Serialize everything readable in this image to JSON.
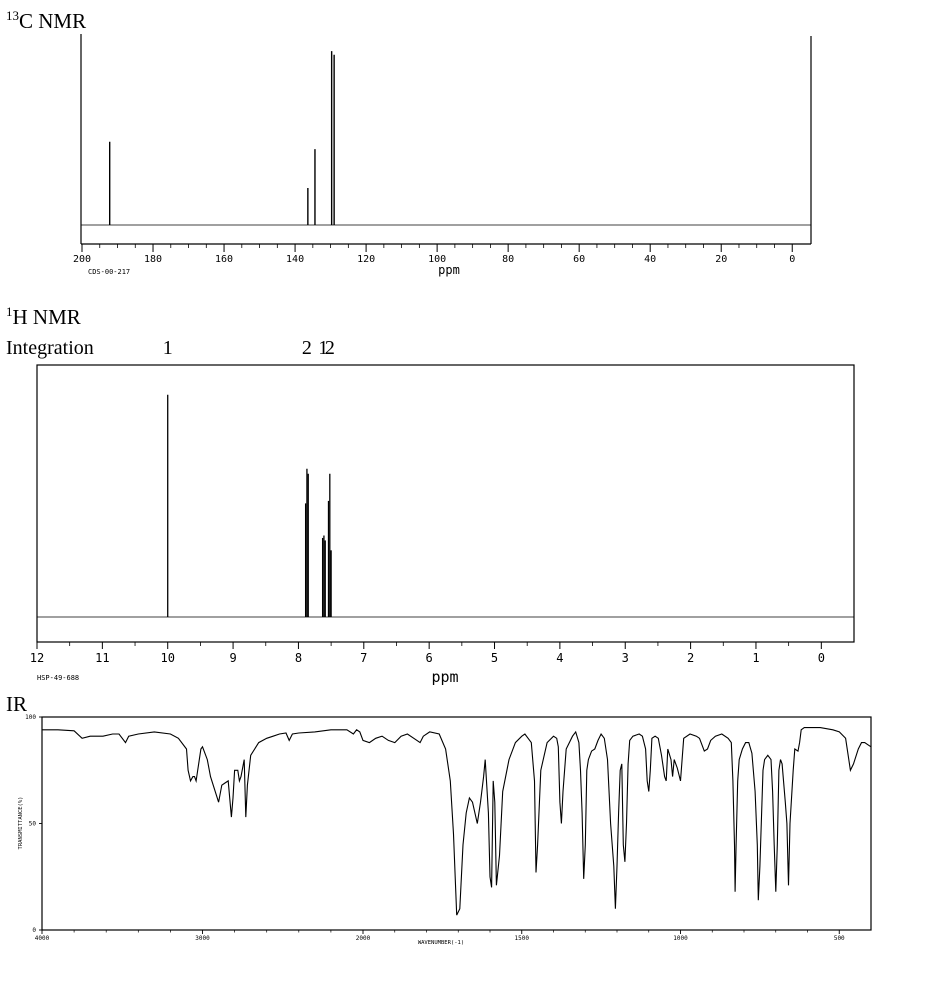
{
  "colors": {
    "line": "#000000",
    "background": "#ffffff"
  },
  "chart_data": [
    {
      "type": "line",
      "title": "13C NMR",
      "title_sup": "13",
      "title_main": "C NMR",
      "xlabel": "ppm",
      "xlim": [
        200,
        -5
      ],
      "ylim": [
        0,
        1
      ],
      "x_ticks": [
        200,
        180,
        160,
        140,
        120,
        100,
        80,
        60,
        40,
        20,
        0
      ],
      "x_tick_labels": [
        "200",
        "180",
        "160",
        "140",
        "120",
        "100",
        "80",
        "60",
        "40",
        "20",
        "0"
      ],
      "code": "CDS-00-217",
      "grid": false,
      "peaks": [
        {
          "x": 192.2,
          "y": 0.45
        },
        {
          "x": 136.4,
          "y": 0.2
        },
        {
          "x": 134.4,
          "y": 0.41
        },
        {
          "x": 129.7,
          "y": 0.94
        },
        {
          "x": 129.0,
          "y": 0.92
        }
      ]
    },
    {
      "type": "line",
      "title": "1H NMR",
      "title_sup": "1",
      "title_main": "H NMR",
      "integration_label": "Integration",
      "integration": [
        {
          "x": 10.0,
          "label": "1"
        },
        {
          "x": 7.87,
          "label": "2"
        },
        {
          "x": 7.62,
          "label": "1"
        },
        {
          "x": 7.52,
          "label": "2"
        }
      ],
      "xlabel": "ppm",
      "xlim": [
        12,
        -0.5
      ],
      "ylim": [
        0,
        1
      ],
      "x_ticks": [
        12,
        11,
        10,
        9,
        8,
        7,
        6,
        5,
        4,
        3,
        2,
        1,
        0
      ],
      "x_tick_labels": [
        "12",
        "11",
        "10",
        "9",
        "8",
        "7",
        "6",
        "5",
        "4",
        "3",
        "2",
        "1",
        "0"
      ],
      "code": "HSP-49-688",
      "grid": false,
      "peaks": [
        {
          "x": 10.0,
          "y": 0.9
        },
        {
          "x": 7.89,
          "y": 0.46
        },
        {
          "x": 7.87,
          "y": 0.6
        },
        {
          "x": 7.85,
          "y": 0.58
        },
        {
          "x": 7.63,
          "y": 0.32
        },
        {
          "x": 7.61,
          "y": 0.33
        },
        {
          "x": 7.59,
          "y": 0.31
        },
        {
          "x": 7.54,
          "y": 0.47
        },
        {
          "x": 7.52,
          "y": 0.58
        },
        {
          "x": 7.5,
          "y": 0.27
        }
      ]
    },
    {
      "type": "line",
      "title": "IR",
      "xlabel": "WAVENUMBER(-1)",
      "ylabel": "TRANSMITTANCE(%)",
      "xlim": [
        4000,
        400
      ],
      "ylim": [
        0,
        100
      ],
      "x_ticks": [
        4000,
        3000,
        2000,
        1500,
        1000,
        500
      ],
      "x_tick_labels": [
        "4000",
        "3000",
        "2000",
        "1500",
        "1000",
        "500"
      ],
      "y_ticks": [
        0,
        50,
        100
      ],
      "y_tick_labels": [
        "0",
        "50",
        "100"
      ],
      "grid": false,
      "points": [
        [
          4000,
          94
        ],
        [
          3900,
          94
        ],
        [
          3800,
          93.5
        ],
        [
          3750,
          90
        ],
        [
          3700,
          91
        ],
        [
          3620,
          91
        ],
        [
          3560,
          92
        ],
        [
          3520,
          92
        ],
        [
          3480,
          88
        ],
        [
          3460,
          91
        ],
        [
          3400,
          92
        ],
        [
          3300,
          93
        ],
        [
          3200,
          92
        ],
        [
          3150,
          90
        ],
        [
          3100,
          85
        ],
        [
          3090,
          75
        ],
        [
          3075,
          70
        ],
        [
          3060,
          72
        ],
        [
          3050,
          72
        ],
        [
          3040,
          70
        ],
        [
          3030,
          75
        ],
        [
          3010,
          85
        ],
        [
          3000,
          86
        ],
        [
          2990,
          84
        ],
        [
          2970,
          80
        ],
        [
          2950,
          72
        ],
        [
          2900,
          60
        ],
        [
          2880,
          68
        ],
        [
          2860,
          69
        ],
        [
          2840,
          70
        ],
        [
          2820,
          53
        ],
        [
          2810,
          62
        ],
        [
          2800,
          75
        ],
        [
          2780,
          75
        ],
        [
          2770,
          70
        ],
        [
          2760,
          72
        ],
        [
          2740,
          80
        ],
        [
          2730,
          53
        ],
        [
          2720,
          68
        ],
        [
          2700,
          82
        ],
        [
          2650,
          88
        ],
        [
          2600,
          90
        ],
        [
          2560,
          91
        ],
        [
          2520,
          92
        ],
        [
          2480,
          92.5
        ],
        [
          2460,
          89
        ],
        [
          2440,
          92
        ],
        [
          2400,
          92.5
        ],
        [
          2300,
          93
        ],
        [
          2200,
          94
        ],
        [
          2100,
          94
        ],
        [
          2060,
          92
        ],
        [
          2040,
          94
        ],
        [
          2020,
          93
        ],
        [
          2000,
          89
        ],
        [
          1980,
          88
        ],
        [
          1960,
          90
        ],
        [
          1940,
          91
        ],
        [
          1920,
          89
        ],
        [
          1900,
          88
        ],
        [
          1880,
          91
        ],
        [
          1860,
          92
        ],
        [
          1840,
          90
        ],
        [
          1820,
          88
        ],
        [
          1810,
          91
        ],
        [
          1790,
          93
        ],
        [
          1760,
          92
        ],
        [
          1740,
          85
        ],
        [
          1725,
          70
        ],
        [
          1715,
          45
        ],
        [
          1705,
          7
        ],
        [
          1695,
          10
        ],
        [
          1685,
          40
        ],
        [
          1675,
          55
        ],
        [
          1665,
          62
        ],
        [
          1655,
          60
        ],
        [
          1640,
          50
        ],
        [
          1630,
          60
        ],
        [
          1620,
          72
        ],
        [
          1615,
          80
        ],
        [
          1605,
          55
        ],
        [
          1600,
          25
        ],
        [
          1595,
          20
        ],
        [
          1590,
          70
        ],
        [
          1585,
          60
        ],
        [
          1580,
          21
        ],
        [
          1570,
          35
        ],
        [
          1560,
          65
        ],
        [
          1540,
          80
        ],
        [
          1520,
          88
        ],
        [
          1500,
          91
        ],
        [
          1490,
          92
        ],
        [
          1480,
          90
        ],
        [
          1470,
          88
        ],
        [
          1460,
          70
        ],
        [
          1455,
          27
        ],
        [
          1450,
          40
        ],
        [
          1440,
          75
        ],
        [
          1420,
          88
        ],
        [
          1400,
          91
        ],
        [
          1390,
          90
        ],
        [
          1385,
          86
        ],
        [
          1380,
          60
        ],
        [
          1375,
          50
        ],
        [
          1370,
          65
        ],
        [
          1360,
          85
        ],
        [
          1340,
          91
        ],
        [
          1330,
          93
        ],
        [
          1320,
          88
        ],
        [
          1315,
          75
        ],
        [
          1310,
          55
        ],
        [
          1305,
          24
        ],
        [
          1300,
          40
        ],
        [
          1295,
          75
        ],
        [
          1290,
          80
        ],
        [
          1280,
          84
        ],
        [
          1270,
          85
        ],
        [
          1260,
          89
        ],
        [
          1250,
          92
        ],
        [
          1240,
          90
        ],
        [
          1230,
          80
        ],
        [
          1220,
          50
        ],
        [
          1210,
          30
        ],
        [
          1205,
          10
        ],
        [
          1200,
          30
        ],
        [
          1195,
          55
        ],
        [
          1190,
          75
        ],
        [
          1185,
          78
        ],
        [
          1180,
          40
        ],
        [
          1175,
          32
        ],
        [
          1170,
          50
        ],
        [
          1165,
          78
        ],
        [
          1160,
          89
        ],
        [
          1150,
          91
        ],
        [
          1130,
          92
        ],
        [
          1120,
          91
        ],
        [
          1110,
          85
        ],
        [
          1105,
          70
        ],
        [
          1100,
          65
        ],
        [
          1095,
          75
        ],
        [
          1090,
          90
        ],
        [
          1080,
          91
        ],
        [
          1070,
          90
        ],
        [
          1060,
          82
        ],
        [
          1050,
          72
        ],
        [
          1045,
          70
        ],
        [
          1040,
          85
        ],
        [
          1030,
          80
        ],
        [
          1025,
          72
        ],
        [
          1020,
          80
        ],
        [
          1010,
          76
        ],
        [
          1000,
          70
        ],
        [
          995,
          80
        ],
        [
          990,
          90
        ],
        [
          970,
          92
        ],
        [
          950,
          91
        ],
        [
          940,
          90
        ],
        [
          925,
          84
        ],
        [
          915,
          85
        ],
        [
          905,
          89
        ],
        [
          890,
          91
        ],
        [
          870,
          92
        ],
        [
          850,
          90
        ],
        [
          840,
          88
        ],
        [
          835,
          70
        ],
        [
          830,
          40
        ],
        [
          828,
          18
        ],
        [
          825,
          40
        ],
        [
          820,
          70
        ],
        [
          815,
          80
        ],
        [
          805,
          85
        ],
        [
          795,
          88
        ],
        [
          785,
          88
        ],
        [
          775,
          83
        ],
        [
          765,
          65
        ],
        [
          758,
          40
        ],
        [
          755,
          14
        ],
        [
          750,
          30
        ],
        [
          740,
          75
        ],
        [
          735,
          80
        ],
        [
          725,
          82
        ],
        [
          715,
          80
        ],
        [
          710,
          65
        ],
        [
          705,
          40
        ],
        [
          700,
          18
        ],
        [
          695,
          40
        ],
        [
          690,
          75
        ],
        [
          685,
          80
        ],
        [
          680,
          78
        ],
        [
          670,
          60
        ],
        [
          665,
          50
        ],
        [
          660,
          21
        ],
        [
          655,
          50
        ],
        [
          645,
          75
        ],
        [
          640,
          85
        ],
        [
          630,
          84
        ],
        [
          625,
          88
        ],
        [
          620,
          94
        ],
        [
          610,
          95
        ],
        [
          590,
          95
        ],
        [
          560,
          95
        ],
        [
          520,
          94
        ],
        [
          500,
          93
        ],
        [
          480,
          90
        ],
        [
          470,
          80
        ],
        [
          465,
          75
        ],
        [
          455,
          78
        ],
        [
          440,
          85
        ],
        [
          430,
          88
        ],
        [
          420,
          88
        ],
        [
          410,
          87
        ],
        [
          400,
          86
        ]
      ]
    }
  ]
}
